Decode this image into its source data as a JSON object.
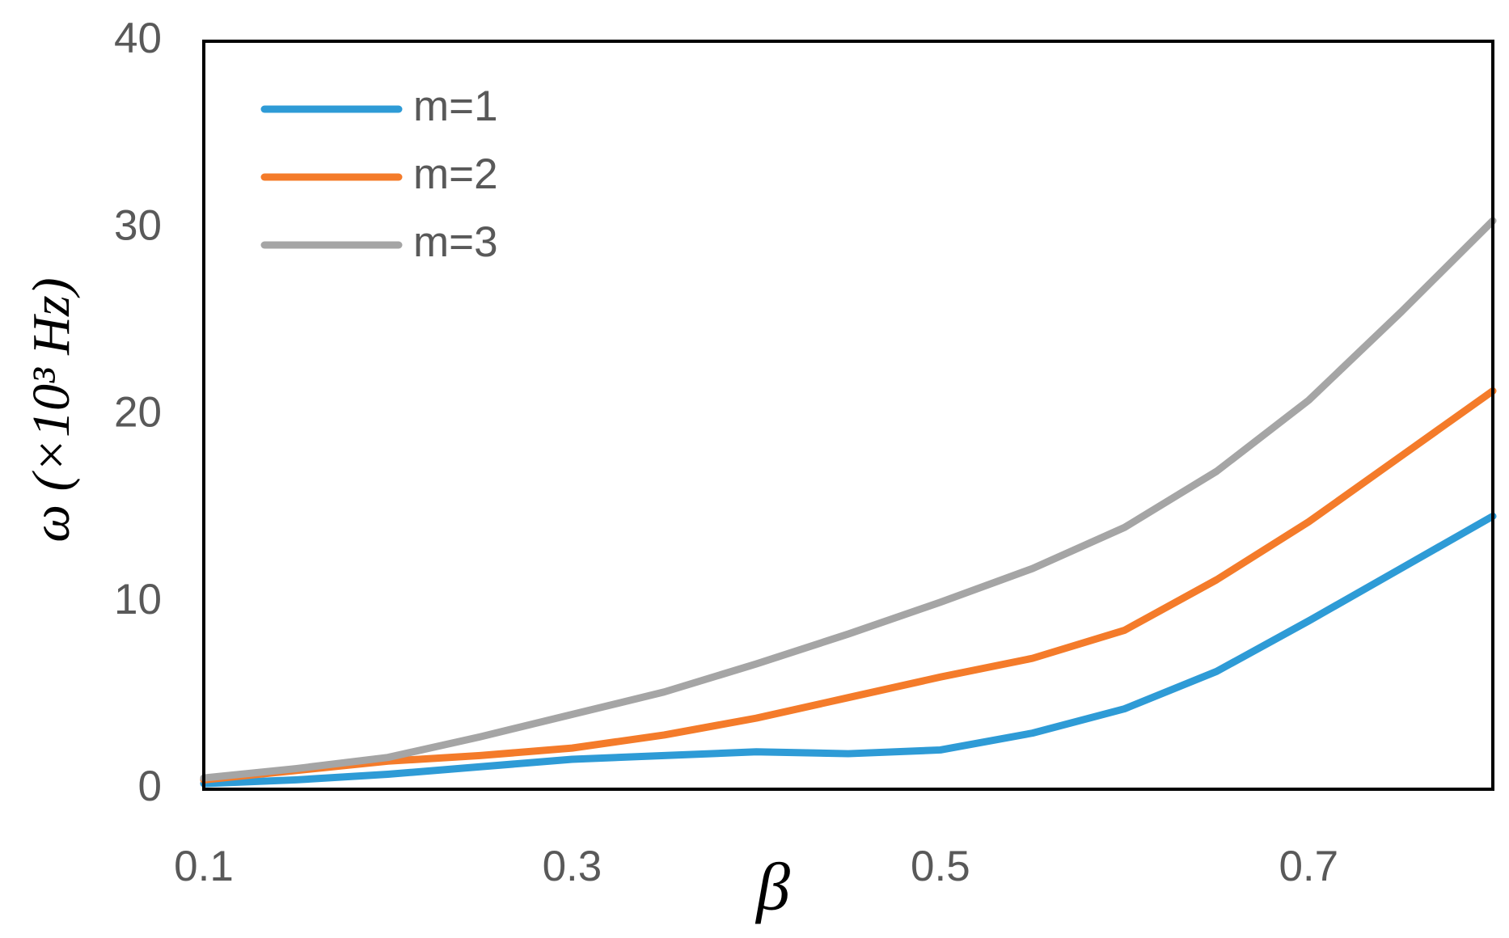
{
  "chart_data": {
    "type": "line",
    "x_label": "β",
    "y_label": "ω (×10³ Hz)",
    "x": [
      0.1,
      0.15,
      0.2,
      0.25,
      0.3,
      0.35,
      0.4,
      0.45,
      0.5,
      0.55,
      0.6,
      0.65,
      0.7,
      0.75,
      0.8
    ],
    "series": [
      {
        "name": "m=1",
        "color": "#2e9bd6",
        "values": [
          0.3,
          0.5,
          0.8,
          1.2,
          1.6,
          1.8,
          2.0,
          1.9,
          2.1,
          3.0,
          4.3,
          6.3,
          9.0,
          11.8,
          14.6
        ]
      },
      {
        "name": "m=2",
        "color": "#f47b2a",
        "values": [
          0.5,
          1.0,
          1.5,
          1.8,
          2.2,
          2.9,
          3.8,
          4.9,
          6.0,
          7.0,
          8.5,
          11.2,
          14.3,
          17.8,
          21.3
        ]
      },
      {
        "name": "m=3",
        "color": "#a5a5a5",
        "values": [
          0.6,
          1.1,
          1.7,
          2.8,
          4.0,
          5.2,
          6.7,
          8.3,
          10.0,
          11.8,
          14.0,
          17.0,
          20.8,
          25.5,
          30.4
        ]
      }
    ],
    "xlim": [
      0.1,
      0.8
    ],
    "xticks": [
      0.1,
      0.3,
      0.5,
      0.7
    ],
    "ylim": [
      0,
      40
    ],
    "yticks": [
      0,
      10,
      20,
      30,
      40
    ],
    "legend": "upper-left"
  }
}
